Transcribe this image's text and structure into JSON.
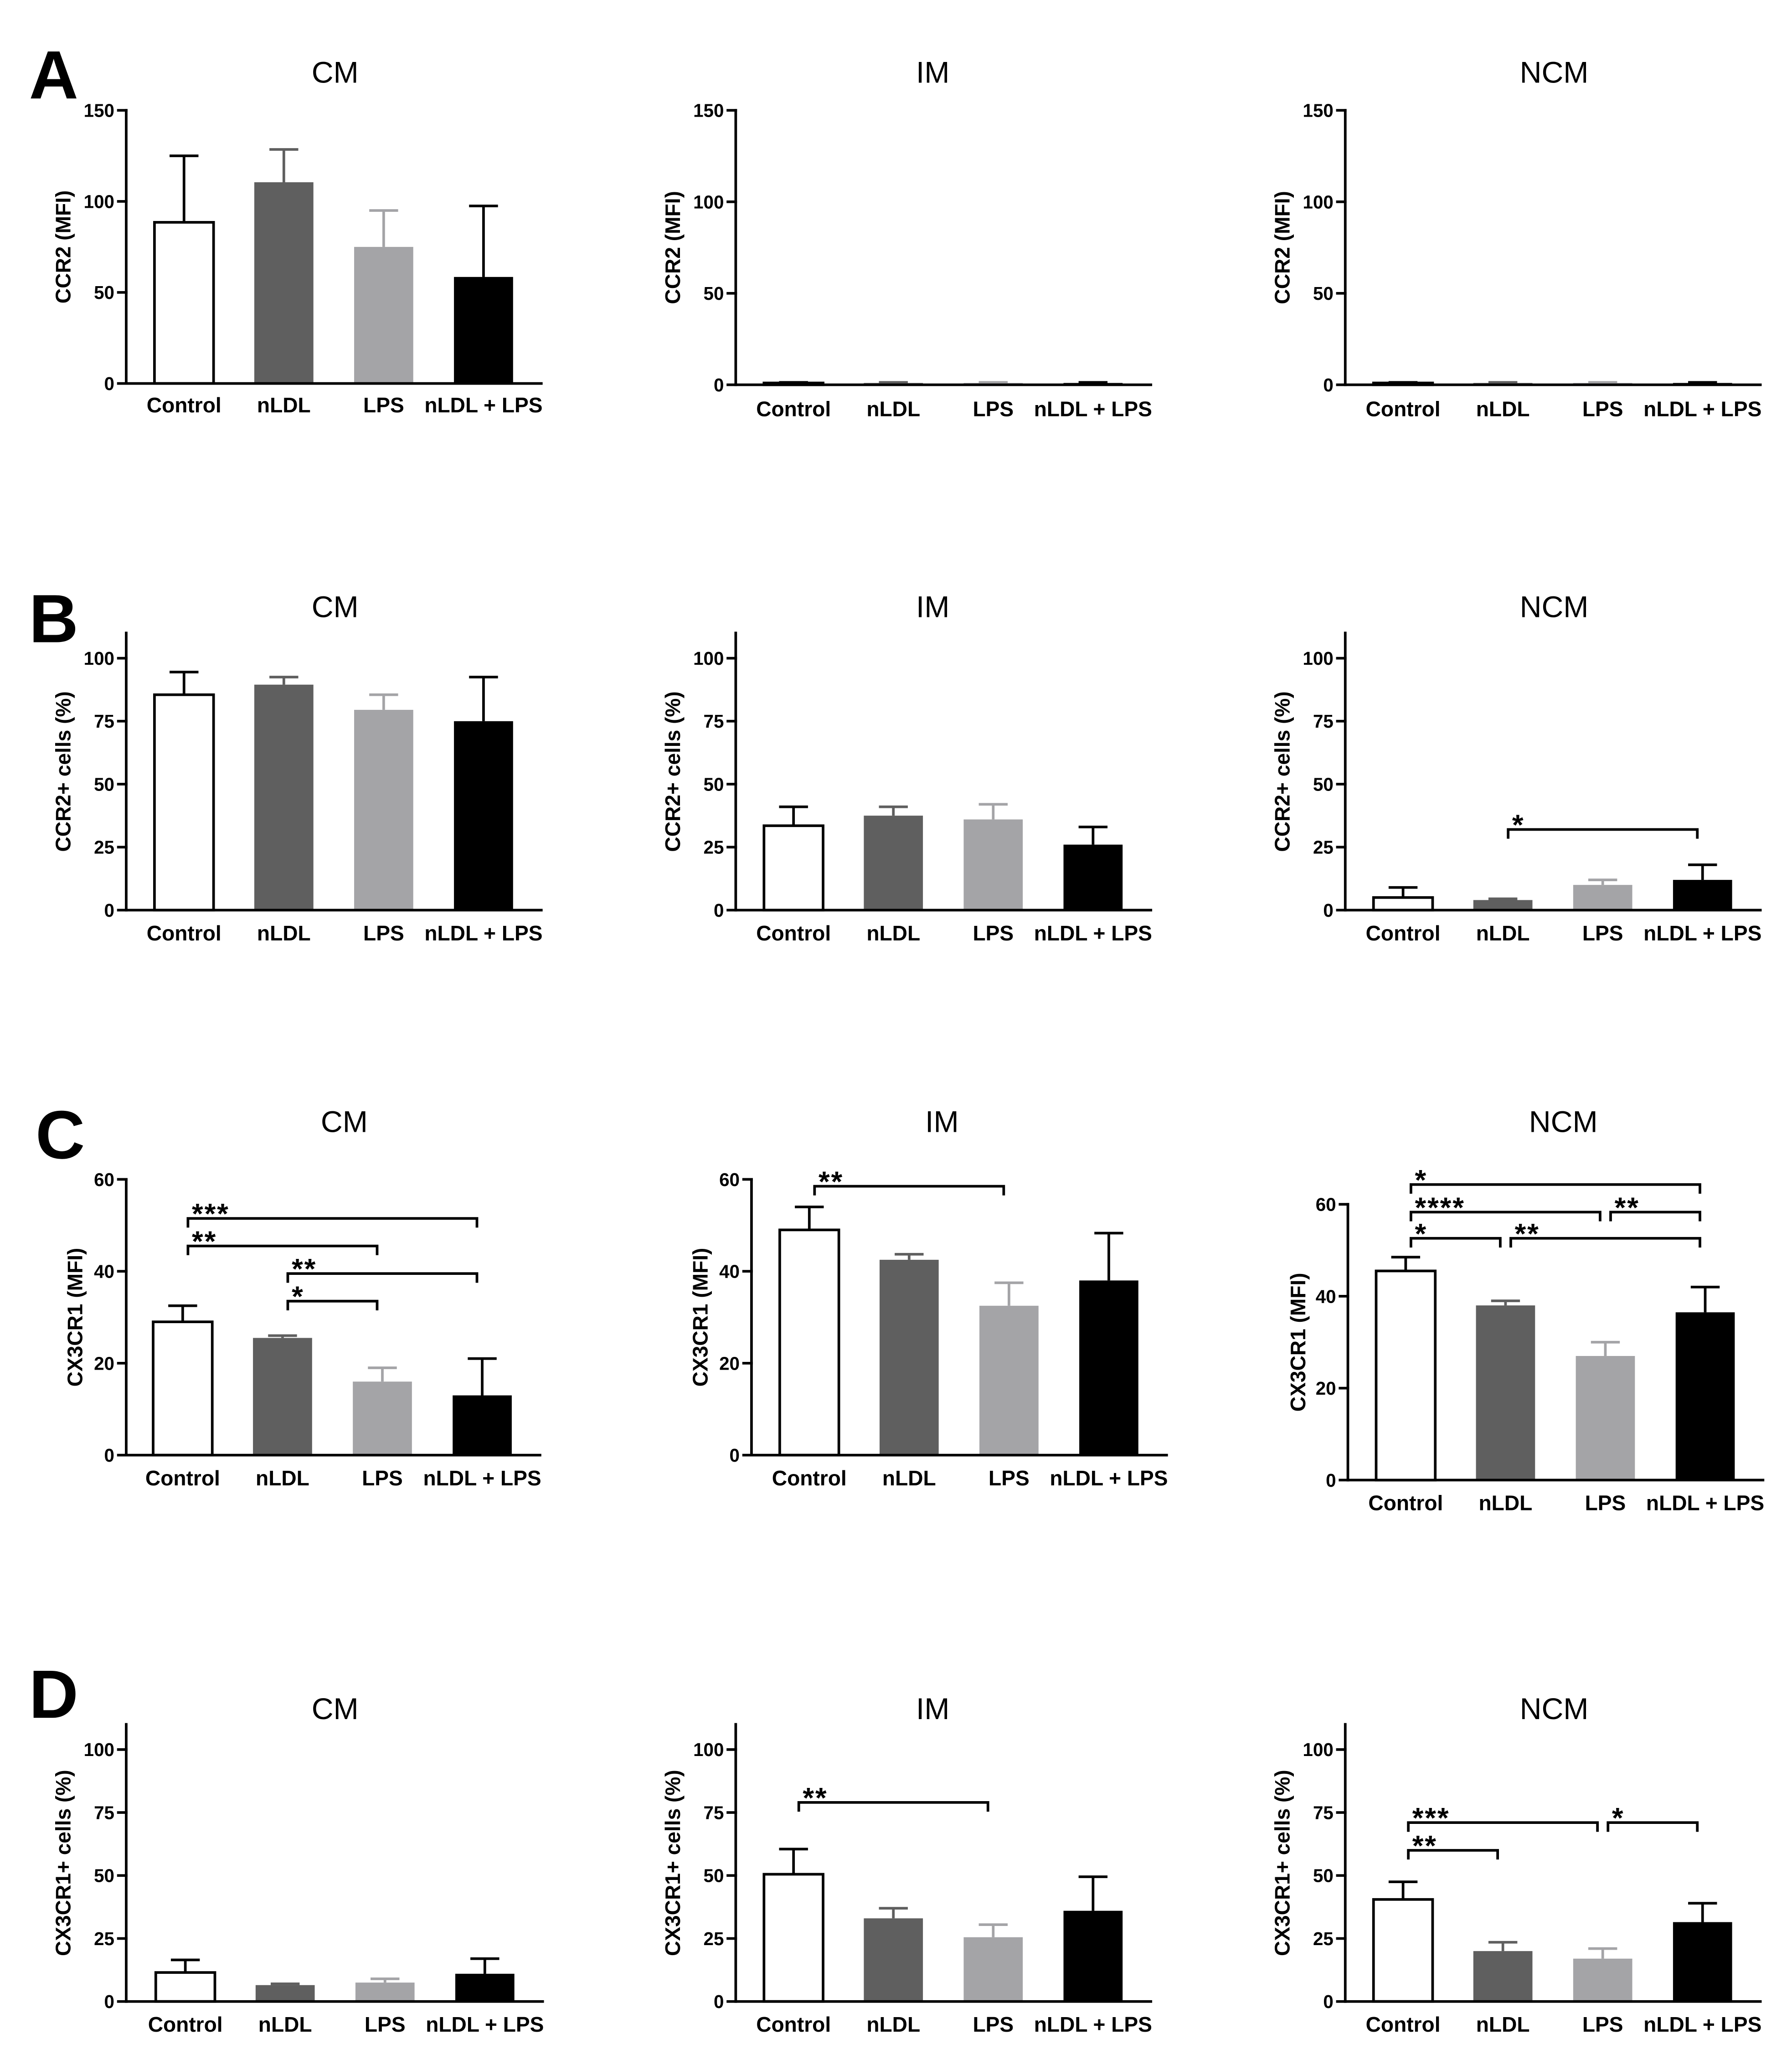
{
  "figure": {
    "panel_labels": [
      "A",
      "B",
      "C",
      "D"
    ],
    "colors": {
      "control_fill": "#ffffff",
      "control_stroke": "#000000",
      "nldl": "#5f5f5f",
      "lps": "#a4a4a7",
      "nldl_lps": "#000000",
      "axis": "#000000",
      "background": "#ffffff"
    }
  },
  "chart_data": [
    {
      "type": "bar",
      "title": "CM",
      "ylabel": "CCR2 (MFI)",
      "xlabel": "",
      "categories": [
        "Control",
        "nLDL",
        "LPS",
        "nLDL + LPS"
      ],
      "values": [
        88.5,
        110.5,
        75,
        58.5
      ],
      "errors": [
        36.5,
        18,
        20,
        39
      ],
      "ylim": [
        0,
        150
      ],
      "yticks": [
        0,
        50,
        100,
        150
      ],
      "significance": []
    },
    {
      "type": "bar",
      "title": "IM",
      "ylabel": "CCR2 (MFI)",
      "xlabel": "",
      "categories": [
        "Control",
        "nLDL",
        "LPS",
        "nLDL + LPS"
      ],
      "values": [
        1,
        1,
        1,
        1
      ],
      "errors": [
        0.3,
        0.3,
        0.3,
        0.3
      ],
      "ylim": [
        0,
        150
      ],
      "yticks": [
        0,
        50,
        100,
        150
      ],
      "significance": []
    },
    {
      "type": "bar",
      "title": "NCM",
      "ylabel": "CCR2 (MFI)",
      "xlabel": "",
      "categories": [
        "Control",
        "nLDL",
        "LPS",
        "nLDL + LPS"
      ],
      "values": [
        1,
        1,
        1,
        1
      ],
      "errors": [
        0.3,
        0.3,
        0.3,
        0.3
      ],
      "ylim": [
        0,
        150
      ],
      "yticks": [
        0,
        50,
        100,
        150
      ],
      "significance": []
    },
    {
      "type": "bar",
      "title": "CM",
      "ylabel": "CCR2+ cells (%)",
      "xlabel": "",
      "categories": [
        "Control",
        "nLDL",
        "LPS",
        "nLDL + LPS"
      ],
      "values": [
        85.5,
        89.5,
        79.5,
        75
      ],
      "errors": [
        9,
        3,
        6,
        17.5
      ],
      "ylim": [
        0,
        110
      ],
      "yticks": [
        0,
        25,
        50,
        75,
        100
      ],
      "significance": []
    },
    {
      "type": "bar",
      "title": "IM",
      "ylabel": "CCR2+ cells (%)",
      "xlabel": "",
      "categories": [
        "Control",
        "nLDL",
        "LPS",
        "nLDL + LPS"
      ],
      "values": [
        33.5,
        37.5,
        36,
        26
      ],
      "errors": [
        7.5,
        3.5,
        6,
        7
      ],
      "ylim": [
        0,
        110
      ],
      "yticks": [
        0,
        25,
        50,
        75,
        100
      ],
      "significance": []
    },
    {
      "type": "bar",
      "title": "NCM",
      "ylabel": "CCR2+ cells (%)",
      "xlabel": "",
      "categories": [
        "Control",
        "nLDL",
        "LPS",
        "nLDL + LPS"
      ],
      "values": [
        5,
        4,
        10,
        12
      ],
      "errors": [
        4,
        0.5,
        2,
        6
      ],
      "ylim": [
        0,
        110
      ],
      "yticks": [
        0,
        25,
        50,
        75,
        100
      ],
      "significance": [
        {
          "from": 1,
          "to": 3,
          "y": 32,
          "label": "*"
        }
      ]
    },
    {
      "type": "bar",
      "title": "CM",
      "ylabel": "CX3CR1 (MFI)",
      "xlabel": "",
      "categories": [
        "Control",
        "nLDL",
        "LPS",
        "nLDL + LPS"
      ],
      "values": [
        29,
        25.5,
        16,
        13
      ],
      "errors": [
        3.5,
        0.5,
        3,
        8
      ],
      "ylim": [
        0,
        60
      ],
      "yticks": [
        0,
        20,
        40,
        60
      ],
      "significance": [
        {
          "from": 0,
          "to": 3,
          "y": 51.5,
          "label": "***"
        },
        {
          "from": 0,
          "to": 2,
          "y": 45.5,
          "label": "**"
        },
        {
          "from": 1,
          "to": 3,
          "y": 39.5,
          "label": "**"
        },
        {
          "from": 1,
          "to": 2,
          "y": 33.5,
          "label": "*"
        }
      ]
    },
    {
      "type": "bar",
      "title": "IM",
      "ylabel": "CX3CR1 (MFI)",
      "xlabel": "",
      "categories": [
        "Control",
        "nLDL",
        "LPS",
        "nLDL + LPS"
      ],
      "values": [
        49,
        42.5,
        32.5,
        38
      ],
      "errors": [
        5,
        1.2,
        5,
        10.3
      ],
      "ylim": [
        0,
        60
      ],
      "yticks": [
        0,
        20,
        40,
        60
      ],
      "significance": [
        {
          "from": 0,
          "to": 2,
          "y": 58.5,
          "label": "**"
        }
      ]
    },
    {
      "type": "bar",
      "title": "NCM",
      "ylabel": "CX3CR1 (MFI)",
      "xlabel": "",
      "categories": [
        "Control",
        "nLDL",
        "LPS",
        "nLDL + LPS"
      ],
      "values": [
        45.5,
        38,
        27,
        36.5
      ],
      "errors": [
        3,
        1,
        3,
        5.5
      ],
      "ylim": [
        0,
        60
      ],
      "yticks": [
        0,
        20,
        40,
        60
      ],
      "significance": [
        {
          "from": 0,
          "to": 3,
          "y": 64.3,
          "label": "*"
        },
        {
          "from": 0,
          "to": 2,
          "y": 58.3,
          "label": "****"
        },
        {
          "from": 2,
          "to": 3,
          "y": 58.3,
          "label": "**"
        },
        {
          "from": 0,
          "to": 1,
          "y": 52.6,
          "label": "*"
        },
        {
          "from": 1,
          "to": 3,
          "y": 52.6,
          "label": "**"
        }
      ]
    },
    {
      "type": "bar",
      "title": "CM",
      "ylabel": "CX3CR1+ cells (%)",
      "xlabel": "",
      "categories": [
        "Control",
        "nLDL",
        "LPS",
        "nLDL + LPS"
      ],
      "values": [
        11.5,
        6.5,
        7.5,
        11
      ],
      "errors": [
        5,
        0.5,
        1.5,
        6
      ],
      "ylim": [
        0,
        110
      ],
      "yticks": [
        0,
        25,
        50,
        75,
        100
      ],
      "significance": []
    },
    {
      "type": "bar",
      "title": "IM",
      "ylabel": "CX3CR1+ cells (%)",
      "xlabel": "",
      "categories": [
        "Control",
        "nLDL",
        "LPS",
        "nLDL + LPS"
      ],
      "values": [
        50.5,
        33,
        25.5,
        36
      ],
      "errors": [
        10,
        4,
        5,
        13.5
      ],
      "ylim": [
        0,
        110
      ],
      "yticks": [
        0,
        25,
        50,
        75,
        100
      ],
      "significance": [
        {
          "from": 0,
          "to": 2,
          "y": 79,
          "label": "**"
        }
      ]
    },
    {
      "type": "bar",
      "title": "NCM",
      "ylabel": "CX3CR1+ cells (%)",
      "xlabel": "",
      "categories": [
        "Control",
        "nLDL",
        "LPS",
        "nLDL + LPS"
      ],
      "values": [
        40.5,
        20,
        17,
        31.5
      ],
      "errors": [
        7,
        3.5,
        4,
        7.5
      ],
      "ylim": [
        0,
        110
      ],
      "yticks": [
        0,
        25,
        50,
        75,
        100
      ],
      "significance": [
        {
          "from": 0,
          "to": 2,
          "y": 71,
          "label": "***"
        },
        {
          "from": 2,
          "to": 3,
          "y": 71,
          "label": "*"
        },
        {
          "from": 0,
          "to": 1,
          "y": 60,
          "label": "**"
        }
      ]
    }
  ]
}
